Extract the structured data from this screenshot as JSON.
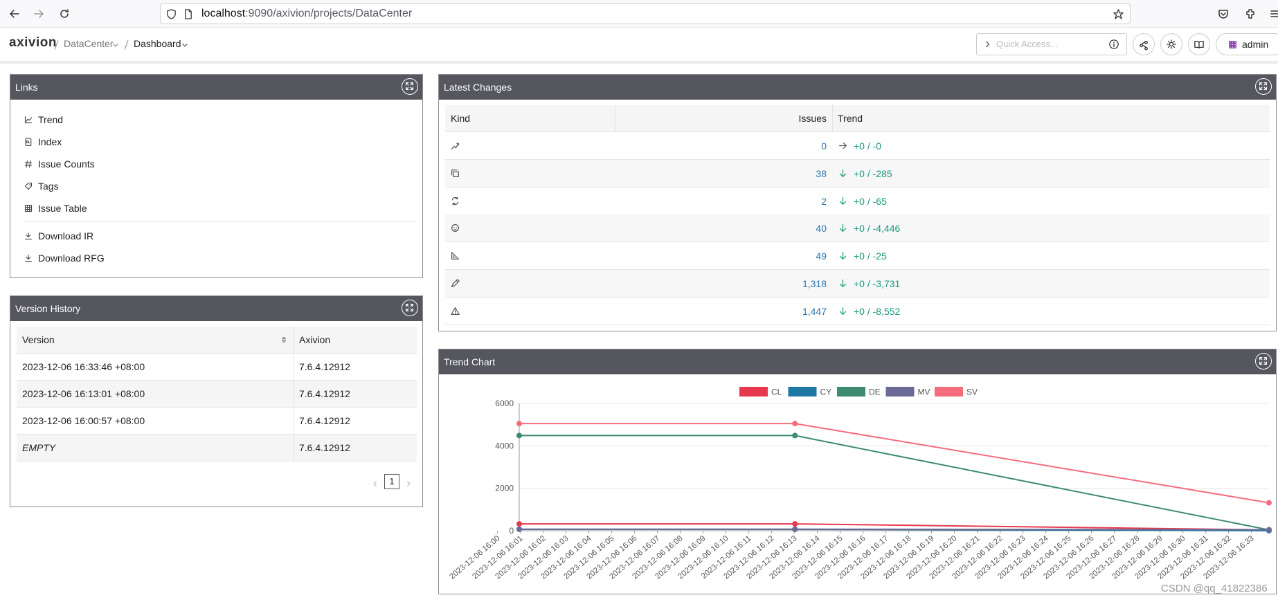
{
  "browser": {
    "url_host": "localhost",
    "url_path": ":9090/axivion/projects/DataCenter"
  },
  "header": {
    "logo": "axivion",
    "breadcrumbs": [
      "DataCenter",
      "Dashboard"
    ],
    "quick_access_placeholder": "Quick Access...",
    "user": "admin"
  },
  "links": {
    "title": "Links",
    "items": [
      "Trend",
      "Index",
      "Issue Counts",
      "Tags",
      "Issue Table"
    ],
    "downloads": [
      "Download IR",
      "Download RFG"
    ]
  },
  "version_history": {
    "title": "Version History",
    "columns": [
      "Version",
      "Axivion"
    ],
    "rows": [
      [
        "2023-12-06 16:33:46 +08:00",
        "7.6.4.12912"
      ],
      [
        "2023-12-06 16:13:01 +08:00",
        "7.6.4.12912"
      ],
      [
        "2023-12-06 16:00:57 +08:00",
        "7.6.4.12912"
      ],
      [
        "EMPTY",
        "7.6.4.12912"
      ]
    ],
    "page": 1
  },
  "latest_changes": {
    "title": "Latest Changes",
    "columns": [
      "Kind",
      "Issues",
      "Trend"
    ],
    "rows": [
      {
        "issues": "0",
        "trend": "+0 / -0"
      },
      {
        "issues": "38",
        "trend": "+0 / -285"
      },
      {
        "issues": "2",
        "trend": "+0 / -65"
      },
      {
        "issues": "40",
        "trend": "+0 / -4,446"
      },
      {
        "issues": "49",
        "trend": "+0 / -25"
      },
      {
        "issues": "1,318",
        "trend": "+0 / -3,731"
      },
      {
        "issues": "1,447",
        "trend": "+0 / -8,552"
      }
    ]
  },
  "trend_chart": {
    "title": "Trend Chart",
    "chart_data": {
      "type": "line",
      "x": [
        "2023-12-06 16:00:57",
        "2023-12-06 16:13:01",
        "2023-12-06 16:33:46"
      ],
      "xlim": [
        "2023-12-06 16:00:57",
        "2023-12-06 16:33:46"
      ],
      "xticks": [
        "2023-12-06 16:00",
        "2023-12-06 16:01",
        "2023-12-06 16:02",
        "2023-12-06 16:03",
        "2023-12-06 16:04",
        "2023-12-06 16:05",
        "2023-12-06 16:06",
        "2023-12-06 16:07",
        "2023-12-06 16:08",
        "2023-12-06 16:09",
        "2023-12-06 16:10",
        "2023-12-06 16:11",
        "2023-12-06 16:12",
        "2023-12-06 16:13",
        "2023-12-06 16:14",
        "2023-12-06 16:15",
        "2023-12-06 16:16",
        "2023-12-06 16:17",
        "2023-12-06 16:18",
        "2023-12-06 16:19",
        "2023-12-06 16:20",
        "2023-12-06 16:21",
        "2023-12-06 16:22",
        "2023-12-06 16:23",
        "2023-12-06 16:24",
        "2023-12-06 16:25",
        "2023-12-06 16:26",
        "2023-12-06 16:27",
        "2023-12-06 16:28",
        "2023-12-06 16:29",
        "2023-12-06 16:30",
        "2023-12-06 16:31",
        "2023-12-06 16:32",
        "2023-12-06 16:33"
      ],
      "ylim": [
        0,
        6000
      ],
      "yticks": [
        0,
        2000,
        4000,
        6000
      ],
      "grid": true,
      "series": [
        {
          "name": "CL",
          "color": "#e8384f",
          "values": [
            323,
            323,
            38
          ]
        },
        {
          "name": "CY",
          "color": "#1f77a4",
          "values": [
            67,
            67,
            2
          ]
        },
        {
          "name": "DE",
          "color": "#3d8b72",
          "values": [
            4486,
            4486,
            40
          ]
        },
        {
          "name": "MV",
          "color": "#6b6b95",
          "values": [
            74,
            74,
            49
          ]
        },
        {
          "name": "SV",
          "color": "#f56c7b",
          "values": [
            5049,
            5049,
            1318
          ]
        }
      ]
    }
  },
  "watermark": "CSDN @qq_41822386"
}
